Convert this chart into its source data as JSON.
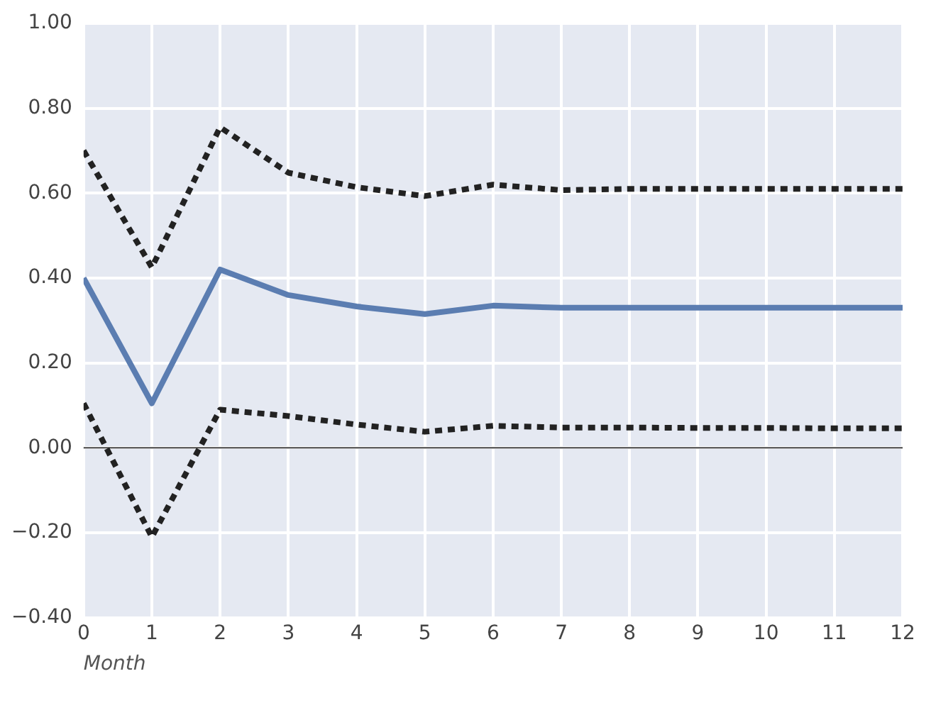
{
  "chart_data": {
    "type": "line",
    "xlabel": "Month",
    "x": [
      0,
      1,
      2,
      3,
      4,
      5,
      6,
      7,
      8,
      9,
      10,
      11,
      12
    ],
    "series": [
      {
        "color": "#5b7db1",
        "line_style": "solid",
        "values": [
          0.4,
          0.105,
          0.42,
          0.36,
          0.333,
          0.315,
          0.335,
          0.33,
          0.33,
          0.33,
          0.33,
          0.33,
          0.33
        ]
      },
      {
        "color": "#222222",
        "line_style": "dotted",
        "values": [
          0.7,
          0.425,
          0.755,
          0.648,
          0.614,
          0.593,
          0.62,
          0.607,
          0.61,
          0.61,
          0.61,
          0.61,
          0.61
        ]
      },
      {
        "color": "#222222",
        "line_style": "dotted",
        "values": [
          0.105,
          -0.21,
          0.09,
          0.075,
          0.055,
          0.038,
          0.052,
          0.048,
          0.048,
          0.047,
          0.047,
          0.046,
          0.046
        ]
      }
    ],
    "xlim": [
      0,
      12
    ],
    "xticks": [
      0,
      1,
      2,
      3,
      4,
      5,
      6,
      7,
      8,
      9,
      10,
      11,
      12
    ],
    "ylim": [
      -0.4,
      1.0
    ],
    "yticks": [
      {
        "value": -0.4,
        "label": "−0.40"
      },
      {
        "value": -0.2,
        "label": "−0.20"
      },
      {
        "value": 0,
        "label": "0.00"
      },
      {
        "value": 0.2,
        "label": "0.20"
      },
      {
        "value": 0.4,
        "label": "0.40"
      },
      {
        "value": 0.6,
        "label": "0.60"
      },
      {
        "value": 0.8,
        "label": "0.80"
      },
      {
        "value": 1.0,
        "label": "1.00"
      }
    ],
    "ref_lines": [
      {
        "axis": "y",
        "value": 0,
        "color": "#444444"
      }
    ],
    "grid": true,
    "legend": false,
    "marker": "none"
  }
}
